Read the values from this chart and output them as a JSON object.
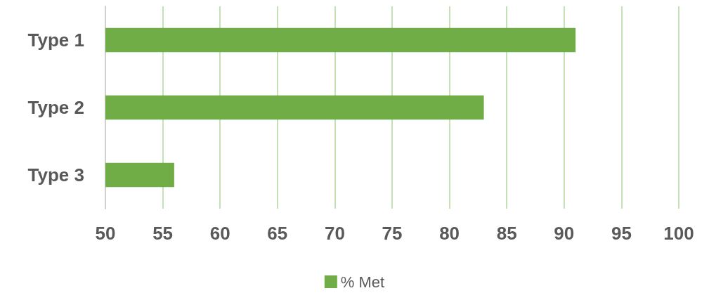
{
  "chart_data": {
    "type": "bar",
    "orientation": "horizontal",
    "categories": [
      "Type 1",
      "Type 2",
      "Type 3"
    ],
    "series": [
      {
        "name": "% Met",
        "color": "#70ad47",
        "values": [
          91,
          83,
          56
        ]
      }
    ],
    "xlim": [
      50,
      100
    ],
    "xticks": [
      50,
      55,
      60,
      65,
      70,
      75,
      80,
      85,
      90,
      95,
      100
    ],
    "grid": "x",
    "legend": "bottom"
  }
}
